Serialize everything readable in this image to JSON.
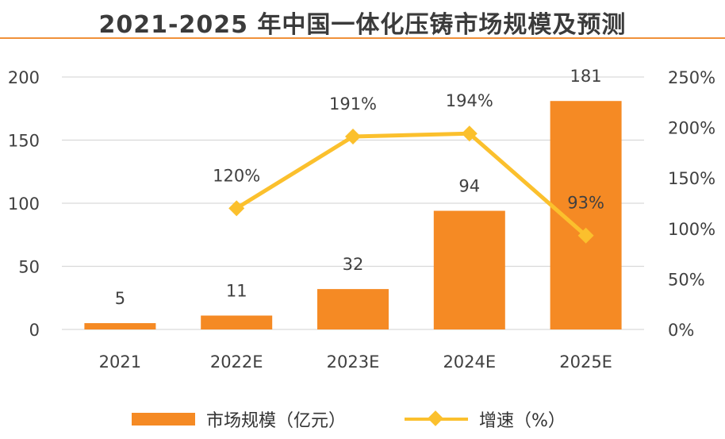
{
  "title": "2021-2025 年中国一体化压铸市场规模及预测",
  "colors": {
    "bar": "#f58a24",
    "line": "#fbc02d",
    "grid": "#d9d9d9",
    "title_rule": "#f0913a"
  },
  "legend": {
    "bar_label": "市场规模（亿元）",
    "line_label": "增速（%）"
  },
  "chart_data": {
    "type": "bar",
    "categories": [
      "2021",
      "2022E",
      "2023E",
      "2024E",
      "2025E"
    ],
    "series": [
      {
        "name": "市场规模（亿元）",
        "type": "bar",
        "axis": "left",
        "values": [
          5,
          11,
          32,
          94,
          181
        ],
        "labels": [
          "5",
          "11",
          "32",
          "94",
          "181"
        ]
      },
      {
        "name": "增速（%）",
        "type": "line",
        "axis": "right",
        "values": [
          null,
          120,
          191,
          194,
          93
        ],
        "labels": [
          "",
          "120%",
          "191%",
          "194%",
          "93%"
        ]
      }
    ],
    "y_left": {
      "lim": [
        0,
        200
      ],
      "ticks": [
        "0",
        "50",
        "100",
        "150",
        "200"
      ]
    },
    "y_right": {
      "lim": [
        0,
        250
      ],
      "ticks": [
        "0%",
        "50%",
        "100%",
        "150%",
        "200%",
        "250%"
      ]
    },
    "grid": true,
    "legend_position": "bottom"
  }
}
